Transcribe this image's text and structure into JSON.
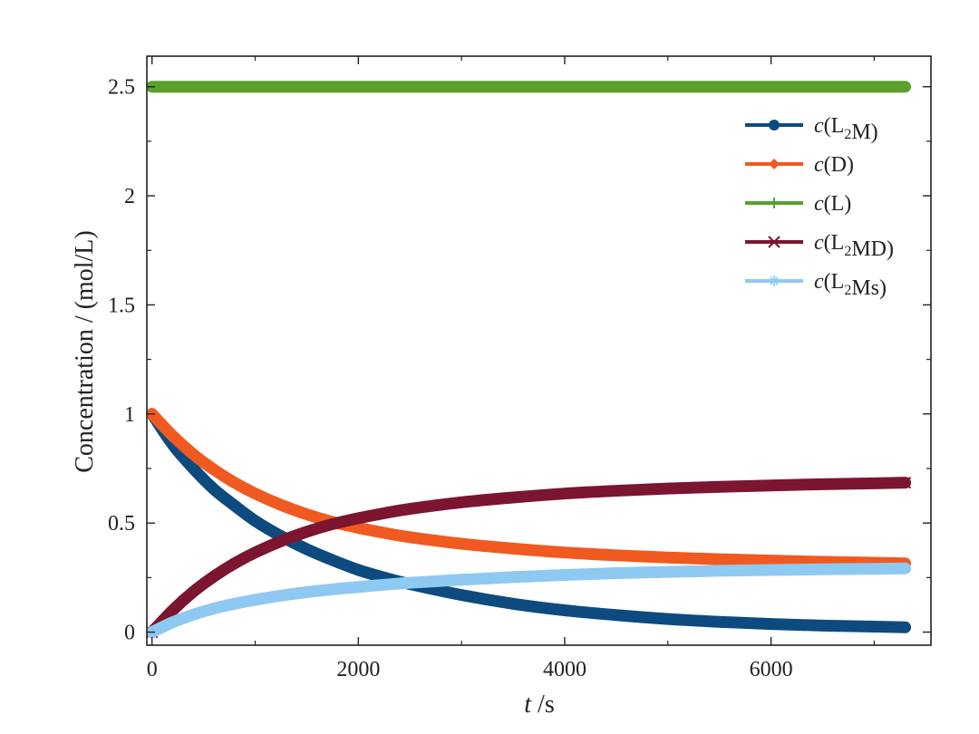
{
  "chart_data": {
    "type": "line",
    "xlabel_var": "t",
    "xlabel_unit": " /s",
    "ylabel": "Concentration / (mol/L)",
    "xlim": [
      -50,
      7550
    ],
    "ylim": [
      -0.06,
      2.64
    ],
    "x_ticks": [
      0,
      2000,
      4000,
      6000
    ],
    "x_tick_labels": [
      "0",
      "2000",
      "4000",
      "6000"
    ],
    "x_minor_ticks": [
      1000,
      3000,
      5000,
      7000
    ],
    "y_ticks": [
      0,
      0.5,
      1,
      1.5,
      2,
      2.5
    ],
    "y_tick_labels": [
      "0",
      "0.5",
      "1",
      "1.5",
      "2",
      "2.5"
    ],
    "y_minor_ticks": [
      0.25,
      0.75,
      1.25,
      1.75,
      2.25
    ],
    "legend_position": "top-right",
    "series": [
      {
        "name": "c(L2M)",
        "legend_parts": [
          {
            "t": "c",
            "style": "italic"
          },
          {
            "t": "(L"
          },
          {
            "t": "2",
            "style": "sub"
          },
          {
            "t": "M)"
          }
        ],
        "color": "#0d4a80",
        "marker": "circle",
        "x": [
          0,
          200,
          400,
          600,
          800,
          1000,
          1250,
          1500,
          1750,
          2000,
          2250,
          2500,
          3000,
          3500,
          4000,
          4500,
          5000,
          5500,
          6000,
          6500,
          7000,
          7300
        ],
        "y": [
          1.0,
          0.86,
          0.75,
          0.655,
          0.58,
          0.51,
          0.44,
          0.38,
          0.33,
          0.285,
          0.25,
          0.22,
          0.17,
          0.13,
          0.1,
          0.078,
          0.06,
          0.047,
          0.037,
          0.03,
          0.025,
          0.022
        ]
      },
      {
        "name": "c(D)",
        "legend_parts": [
          {
            "t": "c",
            "style": "italic"
          },
          {
            "t": "(D)"
          }
        ],
        "color": "#f05a20",
        "marker": "diamond",
        "x": [
          0,
          200,
          400,
          600,
          800,
          1000,
          1250,
          1500,
          1750,
          2000,
          2250,
          2500,
          3000,
          3500,
          4000,
          4500,
          5000,
          5500,
          6000,
          6500,
          7000,
          7300
        ],
        "y": [
          1.0,
          0.9,
          0.815,
          0.745,
          0.685,
          0.635,
          0.583,
          0.54,
          0.505,
          0.478,
          0.455,
          0.435,
          0.405,
          0.383,
          0.365,
          0.352,
          0.342,
          0.334,
          0.328,
          0.322,
          0.318,
          0.315
        ]
      },
      {
        "name": "c(L)",
        "legend_parts": [
          {
            "t": "c",
            "style": "italic"
          },
          {
            "t": "(L)"
          }
        ],
        "color": "#5aa02c",
        "marker": "plus",
        "x": [
          0,
          7300
        ],
        "y": [
          2.5,
          2.5
        ]
      },
      {
        "name": "c(L2MD)",
        "legend_parts": [
          {
            "t": "c",
            "style": "italic"
          },
          {
            "t": "(L"
          },
          {
            "t": "2",
            "style": "sub"
          },
          {
            "t": "MD)"
          }
        ],
        "color": "#7b1530",
        "marker": "x",
        "x": [
          0,
          200,
          400,
          600,
          800,
          1000,
          1250,
          1500,
          1750,
          2000,
          2250,
          2500,
          3000,
          3500,
          4000,
          4500,
          5000,
          5500,
          6000,
          6500,
          7000,
          7300
        ],
        "y": [
          0.0,
          0.1,
          0.185,
          0.255,
          0.315,
          0.365,
          0.417,
          0.46,
          0.495,
          0.522,
          0.545,
          0.565,
          0.595,
          0.617,
          0.635,
          0.648,
          0.658,
          0.666,
          0.672,
          0.678,
          0.682,
          0.685
        ]
      },
      {
        "name": "c(L2Ms)",
        "legend_parts": [
          {
            "t": "c",
            "style": "italic"
          },
          {
            "t": "(L"
          },
          {
            "t": "2",
            "style": "sub"
          },
          {
            "t": "Ms)"
          }
        ],
        "color": "#8ec9f2",
        "marker": "star",
        "x": [
          0,
          200,
          400,
          600,
          800,
          1000,
          1250,
          1500,
          1750,
          2000,
          2250,
          2500,
          3000,
          3500,
          4000,
          4500,
          5000,
          5500,
          6000,
          6500,
          7000,
          7300
        ],
        "y": [
          0.0,
          0.045,
          0.08,
          0.108,
          0.13,
          0.148,
          0.167,
          0.183,
          0.196,
          0.207,
          0.217,
          0.226,
          0.24,
          0.252,
          0.262,
          0.27,
          0.276,
          0.281,
          0.285,
          0.288,
          0.29,
          0.292
        ]
      }
    ]
  }
}
